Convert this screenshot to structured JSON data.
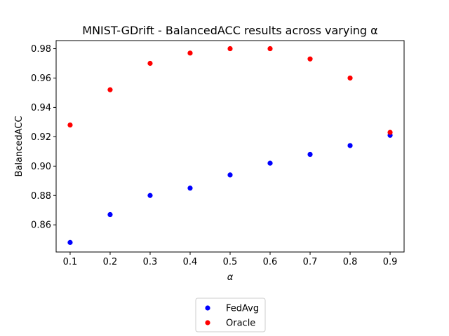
{
  "chart_data": {
    "type": "scatter",
    "title": "MNIST-GDrift - BalancedACC results across varying α",
    "xlabel": "α",
    "ylabel": "BalancedACC",
    "xlim": [
      0.065,
      0.935
    ],
    "ylim": [
      0.8415,
      0.9855
    ],
    "x_ticks": [
      0.1,
      0.2,
      0.3,
      0.4,
      0.5,
      0.6,
      0.7,
      0.8,
      0.9
    ],
    "x_tick_labels": [
      "0.1",
      "0.2",
      "0.3",
      "0.4",
      "0.5",
      "0.6",
      "0.7",
      "0.8",
      "0.9"
    ],
    "y_ticks": [
      0.86,
      0.88,
      0.9,
      0.92,
      0.94,
      0.96,
      0.98
    ],
    "y_tick_labels": [
      "0.86",
      "0.88",
      "0.90",
      "0.92",
      "0.94",
      "0.96",
      "0.98"
    ],
    "grid": false,
    "legend_position": "below",
    "x": [
      0.1,
      0.2,
      0.3,
      0.4,
      0.5,
      0.6,
      0.7,
      0.8,
      0.9
    ],
    "series": [
      {
        "name": "FedAvg",
        "color": "#0000ff",
        "values": [
          0.848,
          0.867,
          0.88,
          0.885,
          0.894,
          0.902,
          0.908,
          0.914,
          0.921
        ]
      },
      {
        "name": "Oracle",
        "color": "#ff0000",
        "values": [
          0.928,
          0.952,
          0.97,
          0.977,
          0.98,
          0.98,
          0.973,
          0.96,
          0.923
        ]
      }
    ]
  }
}
